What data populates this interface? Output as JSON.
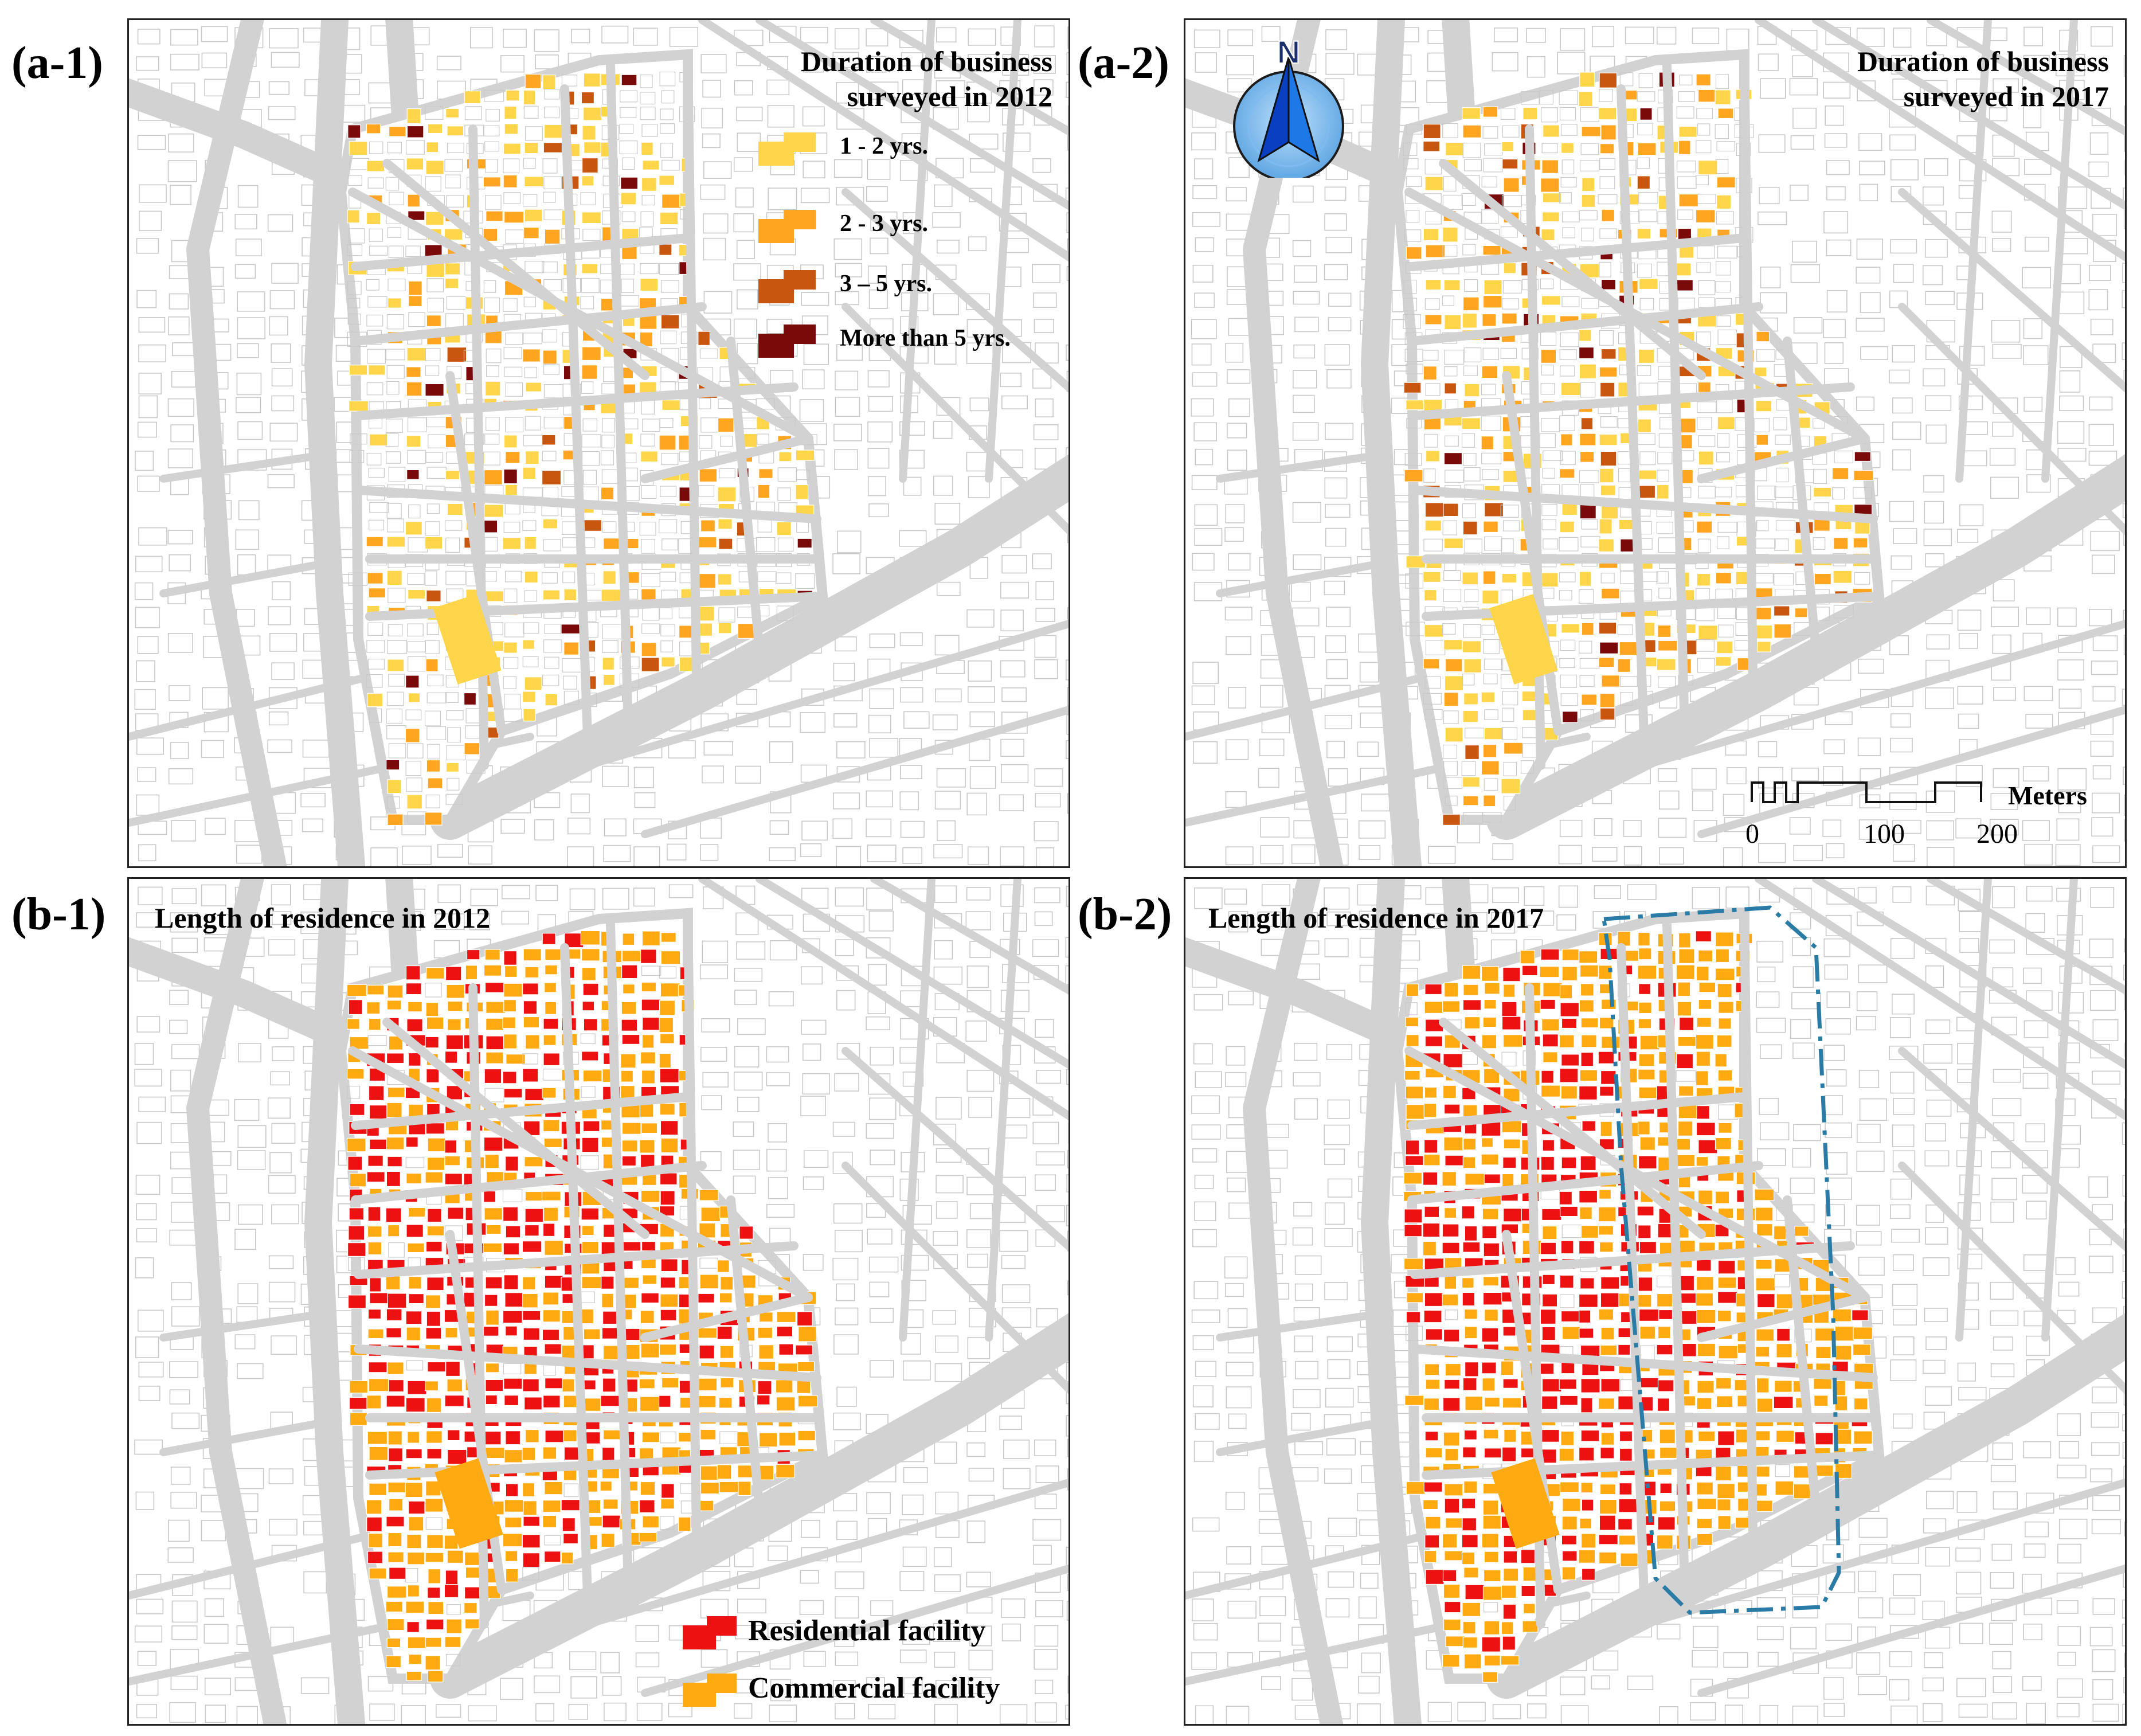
{
  "panels": [
    {
      "id": "a1",
      "label": "(a-1)",
      "title_lines": [
        "Duration of business",
        "surveyed in 2012"
      ],
      "mode": "duration",
      "year": 2012
    },
    {
      "id": "a2",
      "label": "(a-2)",
      "title_lines": [
        "Duration of business",
        "surveyed in 2017"
      ],
      "mode": "duration",
      "year": 2017
    },
    {
      "id": "b1",
      "label": "(b-1)",
      "title_lines": [
        "Length of residence in 2012"
      ],
      "mode": "residence",
      "year": 2012
    },
    {
      "id": "b2",
      "label": "(b-2)",
      "title_lines": [
        "Length of residence in 2017"
      ],
      "mode": "residence",
      "year": 2017
    }
  ],
  "legend_duration": [
    {
      "label": "1 -  2 yrs.",
      "color": "#ffd54a"
    },
    {
      "label": "2 -  3 yrs.",
      "color": "#ffa51f"
    },
    {
      "label": "3 – 5 yrs.",
      "color": "#c8560f"
    },
    {
      "label": "More than 5 yrs.",
      "color": "#7a0a0a"
    }
  ],
  "legend_residence": [
    {
      "label": "Residential facility",
      "color": "#ee1111"
    },
    {
      "label": "Commercial facility",
      "color": "#ffaa11"
    }
  ],
  "compass": {
    "letter": "N",
    "icon": "north-arrow-compass-icon"
  },
  "scale_bar": {
    "ticks": [
      "0",
      "100",
      "200"
    ],
    "unit": "Meters"
  },
  "colors": {
    "road": "#d2d2d2",
    "building_outline": "#c9c9c9",
    "highlight_boundary": "#2a7ca6"
  }
}
